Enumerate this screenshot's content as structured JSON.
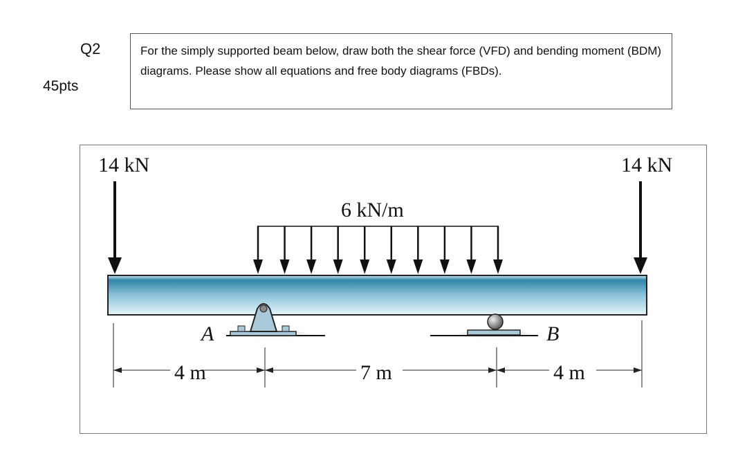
{
  "question": {
    "number": "Q2",
    "points": "45pts",
    "prompt": "For the simply supported beam below, draw both the shear force (VFD) and bending moment (BDM) diagrams. Please show all equations and free body diagrams (FBDs)."
  },
  "figure": {
    "left_load": "14 kN",
    "right_load": "14 kN",
    "distributed_load": "6 kN/m",
    "support_a": "A",
    "support_b": "B",
    "dimensions": [
      "4 m",
      "7 m",
      "4 m"
    ],
    "colors": {
      "beam_dark": "#3a8fb0",
      "beam_light": "#dff0f7",
      "support": "#a9c8d8"
    }
  }
}
